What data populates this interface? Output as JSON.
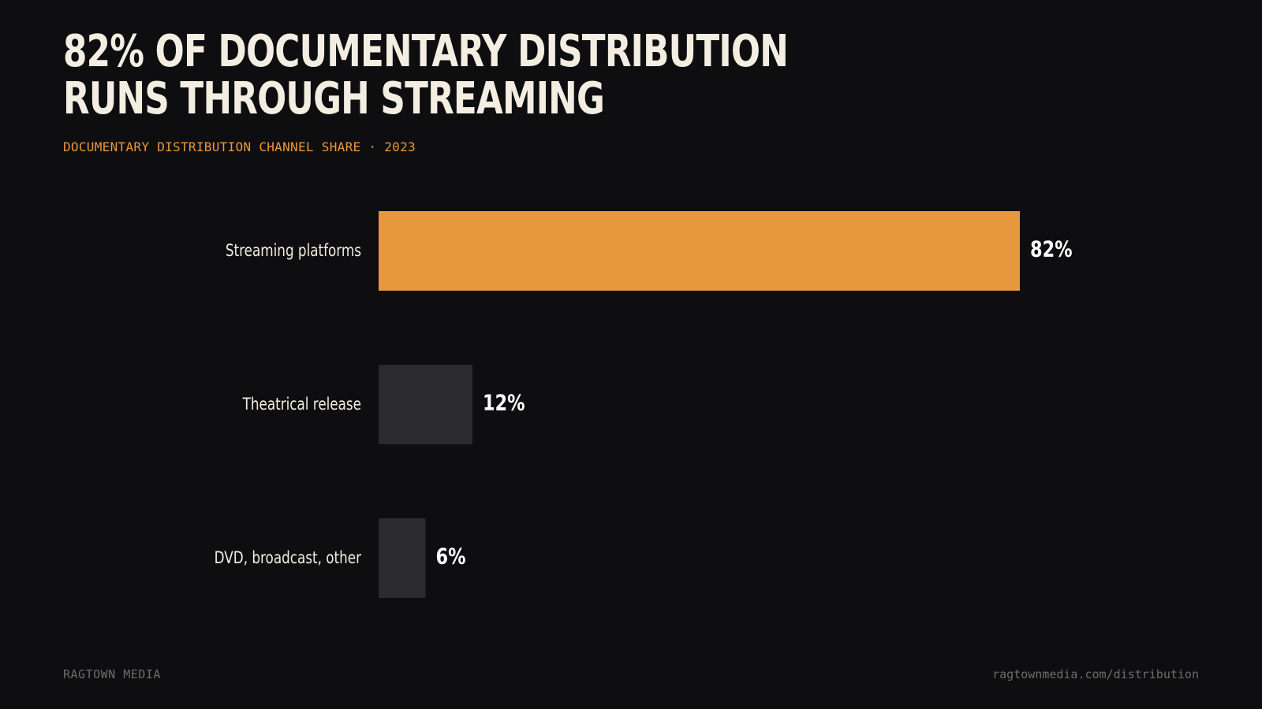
{
  "headline": {
    "line1": "82% OF DOCUMENTARY DISTRIBUTION",
    "line2": "RUNS THROUGH STREAMING"
  },
  "subtitle": "DOCUMENTARY DISTRIBUTION CHANNEL SHARE · 2023",
  "chart_data": {
    "type": "bar",
    "orientation": "horizontal",
    "categories": [
      "Streaming platforms",
      "Theatrical release",
      "DVD, broadcast, other"
    ],
    "values": [
      82,
      12,
      6
    ],
    "value_labels": [
      "82%",
      "12%",
      "6%"
    ],
    "unit": "%",
    "xlim": [
      0,
      100
    ],
    "grid": false,
    "legend": "none",
    "colors": {
      "highlight": "#e8983c",
      "default": "#2b2b2f"
    },
    "highlight_index": 0
  },
  "footer": {
    "left": "RAGTOWN MEDIA",
    "right": "ragtownmedia.com/distribution"
  }
}
